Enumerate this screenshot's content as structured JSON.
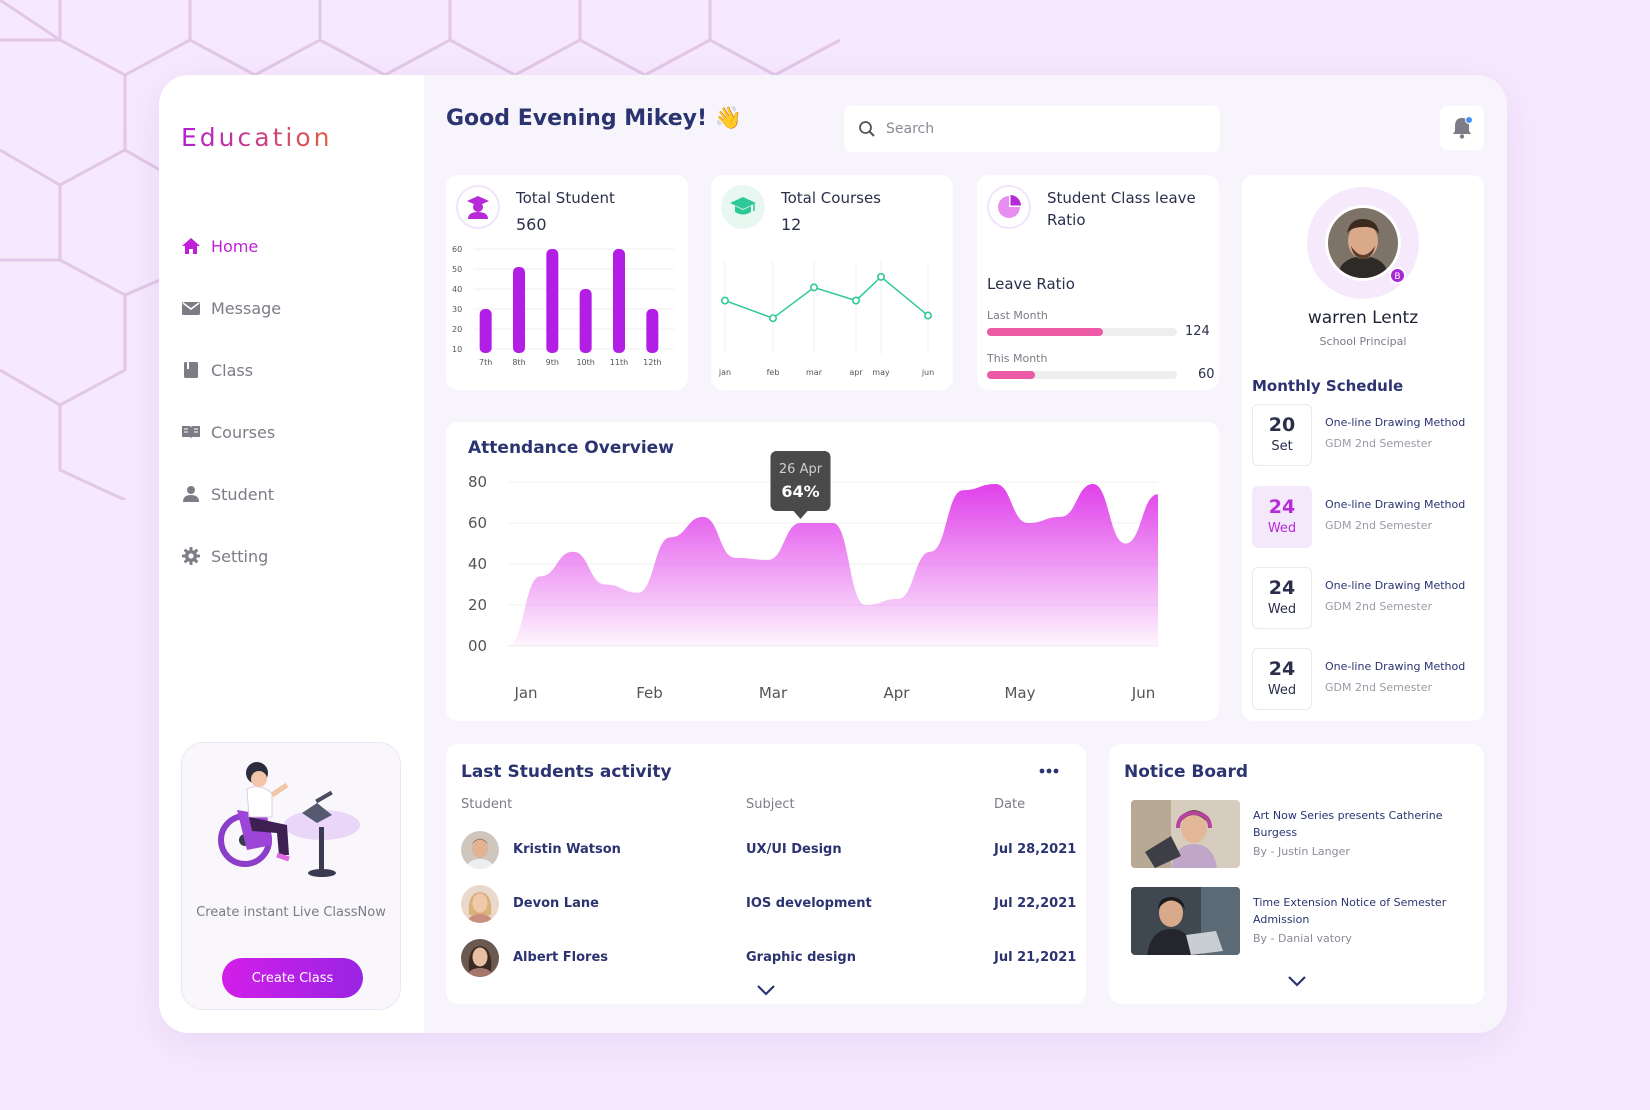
{
  "sidebar": {
    "logo": "Education",
    "items": [
      {
        "label": "Home"
      },
      {
        "label": "Message"
      },
      {
        "label": "Class"
      },
      {
        "label": "Courses"
      },
      {
        "label": "Student"
      },
      {
        "label": "Setting"
      }
    ],
    "promo_text": "Create instant Live ClassNow",
    "promo_button": "Create Class"
  },
  "header": {
    "greeting": "Good Evening Mikey!",
    "greeting_emoji": "👋",
    "search_placeholder": "Search"
  },
  "stats": {
    "students": {
      "title": "Total Student",
      "value": "560"
    },
    "courses": {
      "title": "Total Courses",
      "value": "12"
    },
    "leave": {
      "title": "Student Class leave Ratio",
      "subtitle": "Leave Ratio",
      "last_month_label": "Last Month",
      "last_month_value": "124",
      "last_month_fill": 0.61,
      "this_month_label": "This Month",
      "this_month_value": "60",
      "this_month_fill": 0.25
    }
  },
  "profile": {
    "name": "warren Lentz",
    "role": "School Principal",
    "badge": "B",
    "schedule_title": "Monthly Schedule",
    "schedule": [
      {
        "day": "20",
        "weekday": "Set",
        "title": "One-line Drawing Method",
        "sub": "GDM 2nd Semester",
        "highlight": false
      },
      {
        "day": "24",
        "weekday": "Wed",
        "title": "One-line Drawing Method",
        "sub": "GDM 2nd Semester",
        "highlight": true
      },
      {
        "day": "24",
        "weekday": "Wed",
        "title": "One-line Drawing Method",
        "sub": "GDM 2nd Semester",
        "highlight": false
      },
      {
        "day": "24",
        "weekday": "Wed",
        "title": "One-line Drawing Method",
        "sub": "GDM 2nd Semester",
        "highlight": false
      }
    ]
  },
  "activity": {
    "title": "Last Students activity",
    "headers": [
      "Student",
      "Subject",
      "Date"
    ],
    "rows": [
      {
        "student": "Kristin Watson",
        "subject": "UX/UI Design",
        "date": "Jul 28,2021"
      },
      {
        "student": "Devon Lane",
        "subject": "IOS development",
        "date": "Jul 22,2021"
      },
      {
        "student": "Albert Flores",
        "subject": "Graphic design",
        "date": "Jul 21,2021"
      }
    ]
  },
  "notice": {
    "title": "Notice Board",
    "items": [
      {
        "title": "Art Now Series presents Catherine Burgess",
        "by": "By - Justin Langer"
      },
      {
        "title": "Time Extension Notice of Semester Admission",
        "by": "By - Danial vatory"
      }
    ]
  },
  "chart_data": [
    {
      "type": "bar",
      "categories": [
        "7th",
        "8th",
        "9th",
        "10th",
        "11th",
        "12th"
      ],
      "values": [
        30,
        51,
        60,
        40,
        60,
        30
      ],
      "yticks": [
        "60",
        "50",
        "40",
        "30",
        "20",
        "10"
      ],
      "ylim": [
        10,
        60
      ],
      "color": "#b31ee6"
    },
    {
      "type": "line",
      "categories": [
        "jan",
        "feb",
        "mar",
        "apr",
        "may",
        "jun"
      ],
      "points": [
        {
          "x": "jan",
          "y": 55
        },
        {
          "x": "feb",
          "y": 35
        },
        {
          "x": "mar",
          "y": 70
        },
        {
          "x": "apr",
          "y": 55
        },
        {
          "x": "may",
          "y": 82
        },
        {
          "x": "jun",
          "y": 38
        }
      ],
      "color": "#2ec997"
    },
    {
      "type": "area",
      "title": "Attendance Overview",
      "xticks": [
        "Jan",
        "Feb",
        "Mar",
        "Apr",
        "May",
        "Jun"
      ],
      "yticks": [
        "80",
        "60",
        "40",
        "20",
        "00"
      ],
      "ylim": [
        0,
        80
      ],
      "series": [
        {
          "values": [
            0,
            34,
            46,
            30,
            26,
            53,
            63,
            43,
            42,
            60,
            60,
            20,
            23,
            46,
            76,
            79,
            60,
            63,
            79,
            50,
            74
          ]
        }
      ],
      "tooltip": {
        "label": "26 Apr",
        "value": "64%"
      },
      "color": "#e040ea"
    }
  ]
}
